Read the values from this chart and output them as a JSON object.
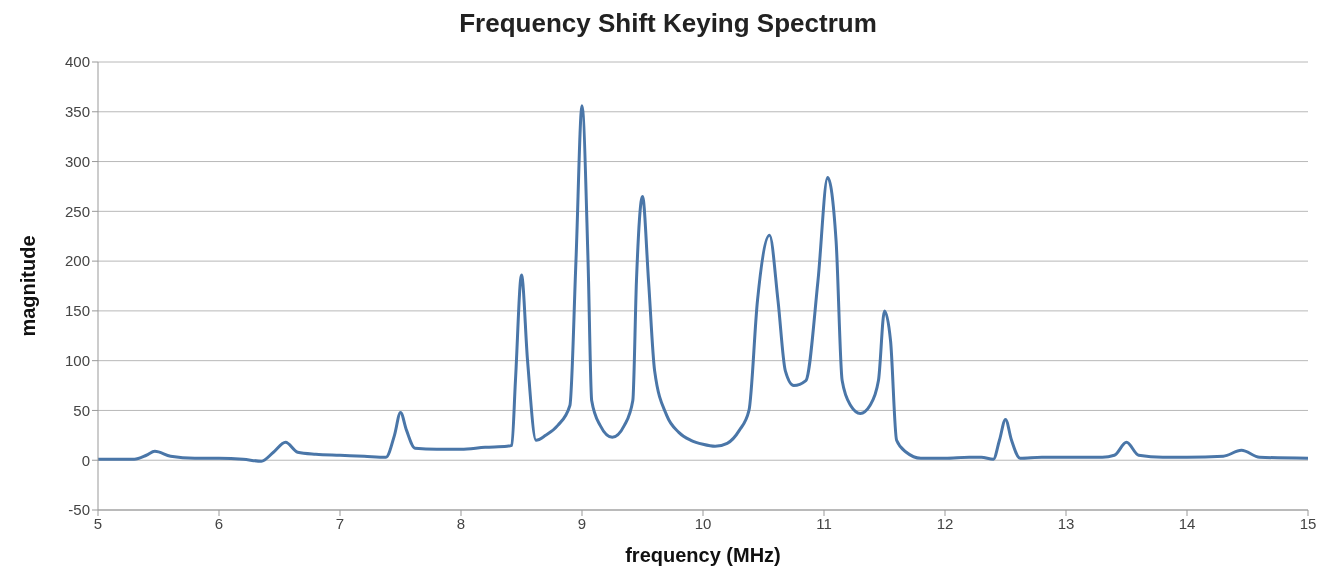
{
  "chart_data": {
    "type": "line",
    "title": "Frequency Shift Keying Spectrum",
    "xlabel": "frequency (MHz)",
    "ylabel": "magnitude",
    "x": [
      5,
      5.3,
      5.4,
      5.47,
      5.6,
      5.8,
      6,
      6.2,
      6.35,
      6.45,
      6.55,
      6.65,
      6.8,
      7,
      7.2,
      7.38,
      7.45,
      7.5,
      7.55,
      7.62,
      7.8,
      8,
      8.2,
      8.38,
      8.42,
      8.45,
      8.5,
      8.55,
      8.62,
      8.7,
      8.8,
      8.9,
      8.95,
      9,
      9.05,
      9.08,
      9.15,
      9.25,
      9.35,
      9.42,
      9.45,
      9.5,
      9.55,
      9.6,
      9.7,
      9.8,
      9.9,
      10,
      10.1,
      10.2,
      10.3,
      10.38,
      10.45,
      10.55,
      10.62,
      10.68,
      10.75,
      10.85,
      10.95,
      11.03,
      11.1,
      11.15,
      11.22,
      11.3,
      11.38,
      11.45,
      11.5,
      11.55,
      11.6,
      11.68,
      11.8,
      12,
      12.2,
      12.3,
      12.4,
      12.45,
      12.5,
      12.55,
      12.62,
      12.8,
      13,
      13.3,
      13.4,
      13.5,
      13.6,
      13.8,
      14,
      14.3,
      14.45,
      14.6,
      15
    ],
    "series": [
      {
        "color": "#4a76a8",
        "values": [
          1,
          1,
          5,
          9,
          4,
          2,
          2,
          1,
          -1,
          8,
          18,
          8,
          6,
          5,
          4,
          3,
          25,
          48,
          30,
          12,
          11,
          11,
          13,
          14,
          15,
          80,
          186,
          100,
          20,
          25,
          35,
          55,
          200,
          356,
          200,
          60,
          35,
          23,
          35,
          60,
          180,
          265,
          180,
          90,
          45,
          28,
          20,
          16,
          14,
          17,
          30,
          50,
          160,
          226,
          160,
          90,
          75,
          80,
          180,
          284,
          220,
          80,
          55,
          47,
          55,
          80,
          150,
          120,
          20,
          8,
          2,
          2,
          3,
          3,
          1,
          20,
          41,
          20,
          2,
          3,
          3,
          3,
          5,
          18,
          5,
          3,
          3,
          4,
          10,
          3,
          2
        ]
      }
    ],
    "xlim": [
      5,
      15
    ],
    "xticks": [
      5,
      6,
      7,
      8,
      9,
      10,
      11,
      12,
      13,
      14,
      15
    ],
    "ylim": [
      -50,
      400
    ],
    "yticks": [
      -50,
      0,
      50,
      100,
      150,
      200,
      250,
      300,
      350,
      400
    ],
    "grid": "y",
    "legend": false,
    "marker": "none",
    "line_style": "solid"
  }
}
